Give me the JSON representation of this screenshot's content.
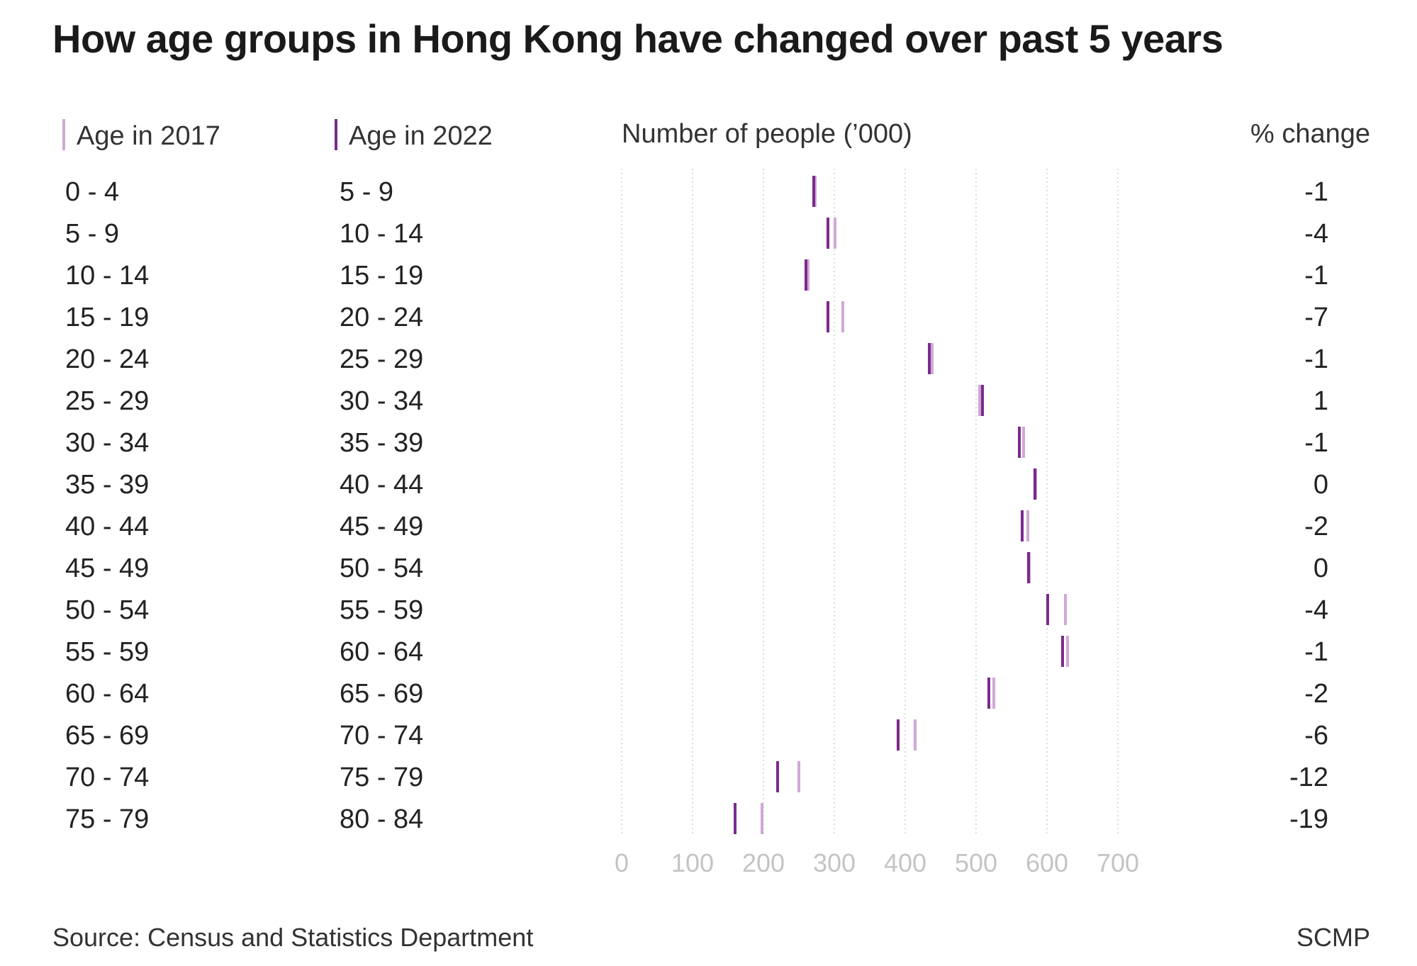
{
  "chart_data": {
    "type": "dot-plot",
    "title": "How age groups in Hong Kong have changed over past 5 years",
    "columns": {
      "age_2017": "Age in 2017",
      "age_2022": "Age in 2022",
      "number": "Number of people (’000)",
      "pct_change": "% change"
    },
    "series": [
      {
        "name": "Age in 2017",
        "color": "#d0a8d6"
      },
      {
        "name": "Age in 2022",
        "color": "#7b2a8c"
      }
    ],
    "x_ticks": [
      "0",
      "100",
      "200",
      "300",
      "400",
      "500",
      "600",
      "700"
    ],
    "xlim": [
      0,
      700
    ],
    "grid": true,
    "rows": [
      {
        "age_2017": "0 - 4",
        "age_2022": "5 - 9",
        "value_2017": 273,
        "value_2022": 271,
        "pct_change": "-1"
      },
      {
        "age_2017": "5 - 9",
        "age_2022": "10 - 14",
        "value_2017": 301,
        "value_2022": 291,
        "pct_change": "-4"
      },
      {
        "age_2017": "10 - 14",
        "age_2022": "15 - 19",
        "value_2017": 263,
        "value_2022": 260,
        "pct_change": "-1"
      },
      {
        "age_2017": "15 - 19",
        "age_2022": "20 - 24",
        "value_2017": 312,
        "value_2022": 291,
        "pct_change": "-7"
      },
      {
        "age_2017": "20 - 24",
        "age_2022": "25 - 29",
        "value_2017": 438,
        "value_2022": 434,
        "pct_change": "-1"
      },
      {
        "age_2017": "25 - 29",
        "age_2022": "30 - 34",
        "value_2017": 505,
        "value_2022": 509,
        "pct_change": "1"
      },
      {
        "age_2017": "30 - 34",
        "age_2022": "35 - 39",
        "value_2017": 567,
        "value_2022": 561,
        "pct_change": "-1"
      },
      {
        "age_2017": "35 - 39",
        "age_2022": "40 - 44",
        "value_2017": 584,
        "value_2022": 583,
        "pct_change": "0"
      },
      {
        "age_2017": "40 - 44",
        "age_2022": "45 - 49",
        "value_2017": 573,
        "value_2022": 565,
        "pct_change": "-2"
      },
      {
        "age_2017": "45 - 49",
        "age_2022": "50 - 54",
        "value_2017": 575,
        "value_2022": 574,
        "pct_change": "0"
      },
      {
        "age_2017": "50 - 54",
        "age_2022": "55 - 59",
        "value_2017": 626,
        "value_2022": 601,
        "pct_change": "-4"
      },
      {
        "age_2017": "55 - 59",
        "age_2022": "60 - 64",
        "value_2017": 629,
        "value_2022": 622,
        "pct_change": "-1"
      },
      {
        "age_2017": "60 - 64",
        "age_2022": "65 - 69",
        "value_2017": 525,
        "value_2022": 518,
        "pct_change": "-2"
      },
      {
        "age_2017": "65 - 69",
        "age_2022": "70 - 74",
        "value_2017": 414,
        "value_2022": 390,
        "pct_change": "-6"
      },
      {
        "age_2017": "70 - 74",
        "age_2022": "75 - 79",
        "value_2017": 250,
        "value_2022": 220,
        "pct_change": "-12"
      },
      {
        "age_2017": "75 - 79",
        "age_2022": "80 - 84",
        "value_2017": 198,
        "value_2022": 160,
        "pct_change": "-19"
      }
    ]
  },
  "footer": {
    "source": "Source: Census and Statistics Department",
    "credit": "SCMP"
  }
}
